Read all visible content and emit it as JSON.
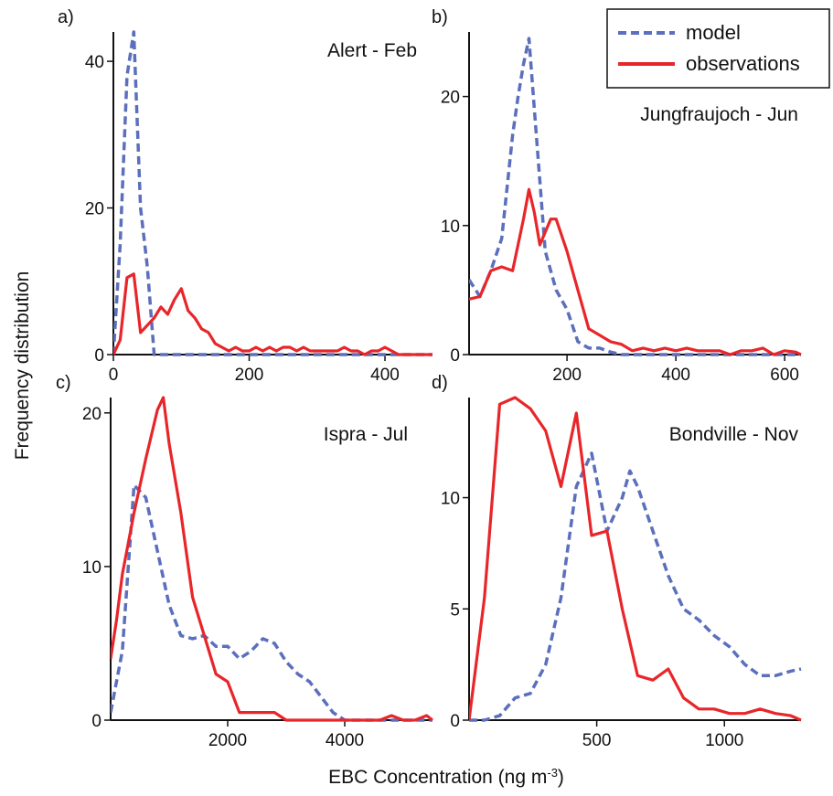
{
  "figure": {
    "xlabel": "EBC Concentration (ng m",
    "xlabel_sup": "-3",
    "xlabel_close": ")",
    "ylabel": "Frequency distribution"
  },
  "legend": {
    "placement": "top-right",
    "entries": [
      {
        "label": "model",
        "color": "#5b6fbd",
        "style": "dashed"
      },
      {
        "label": "observations",
        "color": "#e8262a",
        "style": "solid"
      }
    ]
  },
  "chart_data": [
    {
      "type": "line",
      "panel_label": "a)",
      "title": "Alert - Feb",
      "xlim": [
        0,
        470
      ],
      "ylim": [
        0,
        44
      ],
      "xticks": [
        0,
        200,
        400
      ],
      "yticks": [
        0,
        20,
        40
      ],
      "series": [
        {
          "name": "model",
          "x": [
            0,
            10,
            20,
            30,
            40,
            50,
            60,
            70,
            100,
            200,
            300,
            400,
            470
          ],
          "y": [
            0,
            15,
            38,
            44,
            20,
            12,
            0,
            0,
            0,
            0,
            0,
            0,
            0
          ]
        },
        {
          "name": "observations",
          "x": [
            0,
            10,
            20,
            30,
            40,
            50,
            60,
            70,
            80,
            90,
            100,
            110,
            120,
            130,
            140,
            150,
            160,
            170,
            180,
            190,
            200,
            210,
            220,
            230,
            240,
            250,
            260,
            270,
            280,
            290,
            300,
            310,
            320,
            330,
            340,
            350,
            360,
            370,
            380,
            390,
            400,
            410,
            420,
            430,
            440,
            450,
            460,
            470
          ],
          "y": [
            0,
            2,
            10.5,
            11,
            3,
            4,
            5,
            6.5,
            5.5,
            7.5,
            9,
            6,
            5,
            3.5,
            3,
            1.5,
            1,
            0.5,
            1,
            0.5,
            0.5,
            1,
            0.5,
            1,
            0.5,
            1,
            1,
            0.5,
            1,
            0.5,
            0.5,
            0.5,
            0.5,
            0.5,
            1,
            0.5,
            0.5,
            0,
            0.5,
            0.5,
            1,
            0.5,
            0,
            0,
            0,
            0,
            0,
            0
          ]
        }
      ]
    },
    {
      "type": "line",
      "panel_label": "b)",
      "title": "Jungfraujoch - Jun",
      "xlim": [
        20,
        630
      ],
      "ylim": [
        0,
        25
      ],
      "xticks": [
        200,
        400,
        600
      ],
      "yticks": [
        0,
        10,
        20
      ],
      "series": [
        {
          "name": "model",
          "x": [
            20,
            40,
            60,
            80,
            100,
            110,
            120,
            130,
            140,
            160,
            180,
            200,
            220,
            240,
            260,
            280,
            300,
            400,
            500,
            630
          ],
          "y": [
            5.8,
            4.5,
            6.5,
            9,
            17,
            20,
            22.5,
            24.5,
            19,
            8,
            5,
            3.5,
            1,
            0.5,
            0.5,
            0.2,
            0,
            0,
            0,
            0
          ]
        },
        {
          "name": "observations",
          "x": [
            20,
            40,
            60,
            80,
            100,
            120,
            130,
            140,
            150,
            160,
            170,
            180,
            200,
            220,
            240,
            260,
            280,
            300,
            320,
            340,
            360,
            380,
            400,
            420,
            440,
            460,
            480,
            500,
            520,
            540,
            560,
            580,
            600,
            620,
            630
          ],
          "y": [
            4.3,
            4.5,
            6.5,
            6.8,
            6.5,
            10.5,
            12.8,
            11,
            8.5,
            9.5,
            10.5,
            10.5,
            8,
            5,
            2,
            1.5,
            1,
            0.8,
            0.3,
            0.5,
            0.3,
            0.5,
            0.3,
            0.5,
            0.3,
            0.3,
            0.3,
            0,
            0.3,
            0.3,
            0.5,
            0,
            0.3,
            0.2,
            0
          ]
        }
      ]
    },
    {
      "type": "line",
      "panel_label": "c)",
      "title": "Ispra - Jul",
      "xlim": [
        0,
        5500
      ],
      "ylim": [
        0,
        21
      ],
      "xticks": [
        2000,
        4000
      ],
      "yticks": [
        0,
        10,
        20
      ],
      "series": [
        {
          "name": "model",
          "x": [
            0,
            200,
            400,
            600,
            800,
            1000,
            1200,
            1400,
            1600,
            1800,
            2000,
            2200,
            2400,
            2600,
            2800,
            3000,
            3200,
            3400,
            3600,
            3800,
            4000,
            4500,
            5500
          ],
          "y": [
            0.5,
            4.5,
            15.3,
            14.5,
            11,
            7.5,
            5.5,
            5.3,
            5.5,
            4.8,
            4.8,
            4,
            4.5,
            5.3,
            5,
            3.8,
            3,
            2.5,
            1.5,
            0.5,
            0,
            0,
            0
          ]
        },
        {
          "name": "observations",
          "x": [
            0,
            100,
            200,
            400,
            600,
            800,
            900,
            1000,
            1200,
            1400,
            1600,
            1800,
            2000,
            2200,
            2400,
            2600,
            2800,
            3000,
            3200,
            3400,
            3600,
            3800,
            4000,
            4200,
            4400,
            4600,
            4800,
            5000,
            5200,
            5400,
            5500
          ],
          "y": [
            4,
            6.5,
            9.5,
            13.5,
            17,
            20.2,
            21,
            18,
            13.5,
            8,
            5.5,
            3,
            2.5,
            0.5,
            0.5,
            0.5,
            0.5,
            0,
            0,
            0,
            0,
            0,
            0,
            0,
            0,
            0,
            0.3,
            0,
            0,
            0.3,
            0
          ]
        }
      ]
    },
    {
      "type": "line",
      "panel_label": "d)",
      "title": "Bondville - Nov",
      "xlim": [
        0,
        1300
      ],
      "ylim": [
        0,
        14.5
      ],
      "xticks": [
        500,
        1000
      ],
      "yticks": [
        0,
        5,
        10
      ],
      "series": [
        {
          "name": "model",
          "x": [
            0,
            60,
            120,
            180,
            240,
            300,
            360,
            420,
            480,
            540,
            600,
            630,
            660,
            720,
            780,
            840,
            900,
            960,
            1020,
            1080,
            1140,
            1200,
            1260,
            1300
          ],
          "y": [
            0,
            0,
            0.2,
            1,
            1.2,
            2.5,
            5.5,
            10.5,
            12,
            8.5,
            10,
            11.2,
            10.5,
            8.5,
            6.5,
            5,
            4.5,
            3.8,
            3.3,
            2.5,
            2,
            2,
            2.2,
            2.3
          ]
        },
        {
          "name": "observations",
          "x": [
            0,
            60,
            120,
            180,
            240,
            300,
            360,
            420,
            480,
            540,
            600,
            660,
            720,
            780,
            840,
            900,
            960,
            1020,
            1080,
            1140,
            1200,
            1260,
            1300
          ],
          "y": [
            0,
            5.5,
            14.2,
            14.5,
            14,
            13,
            10.5,
            13.8,
            8.3,
            8.5,
            5,
            2,
            1.8,
            2.3,
            1,
            0.5,
            0.5,
            0.3,
            0.3,
            0.5,
            0.3,
            0.2,
            0
          ]
        }
      ]
    }
  ]
}
